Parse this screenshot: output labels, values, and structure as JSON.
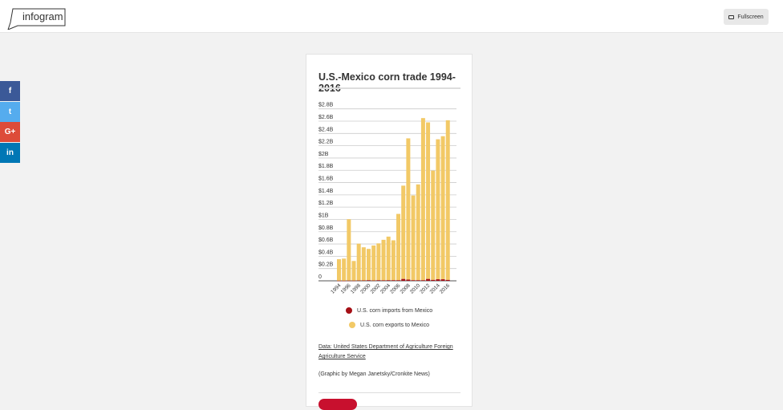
{
  "header": {
    "logo": "infogram",
    "fullscreen_label": "Fullscreen"
  },
  "social": [
    {
      "icon": "facebook-icon",
      "glyph": "f",
      "color": "#3b5998"
    },
    {
      "icon": "twitter-icon",
      "glyph": "t",
      "color": "#55acee"
    },
    {
      "icon": "google-plus-icon",
      "glyph": "G+",
      "color": "#dd4b39"
    },
    {
      "icon": "linkedin-icon",
      "glyph": "in",
      "color": "#0077b5"
    }
  ],
  "footer": {
    "source": "Data: United States Department of Agriculture Foreign Agriculture Service ",
    "credit": "(Graphic by Megan Janetsky/Cronkite News)"
  },
  "chart_data": {
    "type": "bar",
    "stacked": true,
    "title": "U.S.-Mexico corn trade 1994-2016",
    "categories": [
      "1994",
      "1995",
      "1996",
      "1997",
      "1998",
      "1999",
      "2000",
      "2001",
      "2002",
      "2003",
      "2004",
      "2005",
      "2006",
      "2007",
      "2008",
      "2009",
      "2010",
      "2011",
      "2012",
      "2013",
      "2014",
      "2015",
      "2016"
    ],
    "x_tick_labels": [
      "1994",
      "1996",
      "1998",
      "2000",
      "2002",
      "2004",
      "2006",
      "2008",
      "2010",
      "2012",
      "2014",
      "2016"
    ],
    "y_ticks": [
      {
        "v": 0,
        "label": "0"
      },
      {
        "v": 0.2,
        "label": "$0.2B"
      },
      {
        "v": 0.4,
        "label": "$0.4B"
      },
      {
        "v": 0.6,
        "label": "$0.6B"
      },
      {
        "v": 0.8,
        "label": "$0.8B"
      },
      {
        "v": 1,
        "label": "$1B"
      },
      {
        "v": 1.2,
        "label": "$1.2B"
      },
      {
        "v": 1.4,
        "label": "$1.4B"
      },
      {
        "v": 1.6,
        "label": "$1.6B"
      },
      {
        "v": 1.8,
        "label": "$1.8B"
      },
      {
        "v": 2,
        "label": "$2B"
      },
      {
        "v": 2.2,
        "label": "$2.2B"
      },
      {
        "v": 2.4,
        "label": "$2.4B"
      },
      {
        "v": 2.6,
        "label": "$2.6B"
      },
      {
        "v": 2.8,
        "label": "$2.8B"
      }
    ],
    "ylim": [
      0,
      2.8
    ],
    "unit": "billion USD",
    "grid": true,
    "legend": "bottom",
    "series": [
      {
        "name": "U.S. corn imports from Mexico",
        "color": "#a50f15",
        "values": [
          0.002,
          0.002,
          0.003,
          0.003,
          0.005,
          0.006,
          0.01,
          0.005,
          0.01,
          0.008,
          0.01,
          0.01,
          0.01,
          0.03,
          0.02,
          0.01,
          0.01,
          0.01,
          0.03,
          0.015,
          0.025,
          0.025,
          0.015
        ]
      },
      {
        "name": "U.S. corn exports to Mexico",
        "color": "#f2c966",
        "values": [
          0.35,
          0.36,
          1.0,
          0.32,
          0.6,
          0.54,
          0.51,
          0.57,
          0.6,
          0.66,
          0.71,
          0.65,
          1.08,
          1.52,
          2.3,
          1.38,
          1.56,
          2.64,
          2.55,
          1.78,
          2.28,
          2.33,
          2.6
        ]
      }
    ]
  }
}
